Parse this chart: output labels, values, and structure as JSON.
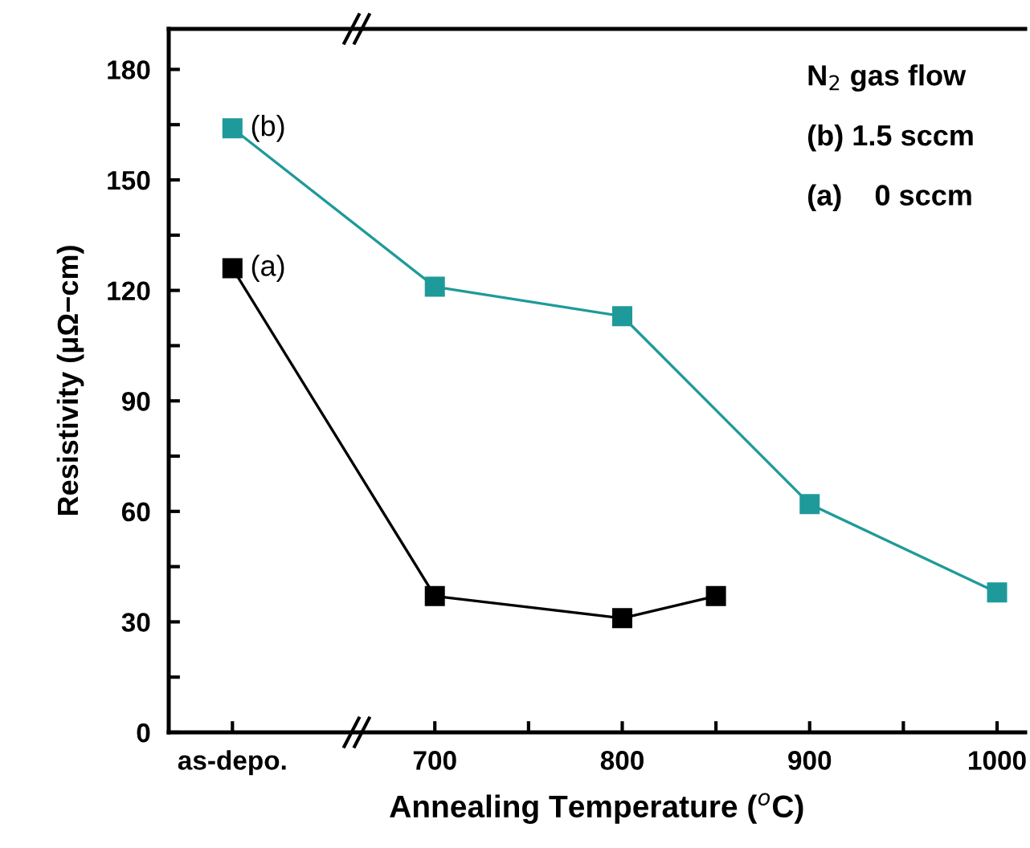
{
  "chart_data": {
    "type": "line",
    "xlabel": "Annealing Temperature ($^{o}$C)",
    "ylabel": "Resistivity (μΩ−cm)",
    "series": [
      {
        "color": "#1f9a9a",
        "x": [
          592,
          700,
          800,
          900,
          1000
        ],
        "values": [
          164,
          121,
          113,
          62,
          38
        ]
      },
      {
        "color": "#000000",
        "x": [
          592,
          700,
          800,
          850
        ],
        "values": [
          126,
          37,
          31,
          37
        ]
      }
    ],
    "xlim": [
      558,
      1015
    ],
    "ylim": [
      0,
      191
    ],
    "xticks": [
      {
        "value": 592,
        "label": "as-depo."
      },
      700,
      {
        "value": 750,
        "label": null
      },
      800,
      {
        "value": 850,
        "label": null
      },
      900,
      {
        "value": 950,
        "label": null
      },
      1000
    ],
    "yticks": [
      0,
      {
        "value": 15,
        "label": null
      },
      30,
      {
        "value": 45,
        "label": null
      },
      60,
      {
        "value": 75,
        "label": null
      },
      90,
      {
        "value": 105,
        "label": null
      },
      120,
      {
        "value": 135,
        "label": null
      },
      150,
      {
        "value": 165,
        "label": null
      },
      180
    ],
    "annotations": [
      {
        "text": "(b)",
        "x": 592,
        "y": 164
      },
      {
        "text": "(a)",
        "x": 592,
        "y": 126
      },
      "N$_{2}$ gas flow",
      "(b) 1.5 sccm",
      "(a)    0 sccm"
    ],
    "marker": "square",
    "line_style": "solid",
    "grid": false,
    "legend": false
  }
}
